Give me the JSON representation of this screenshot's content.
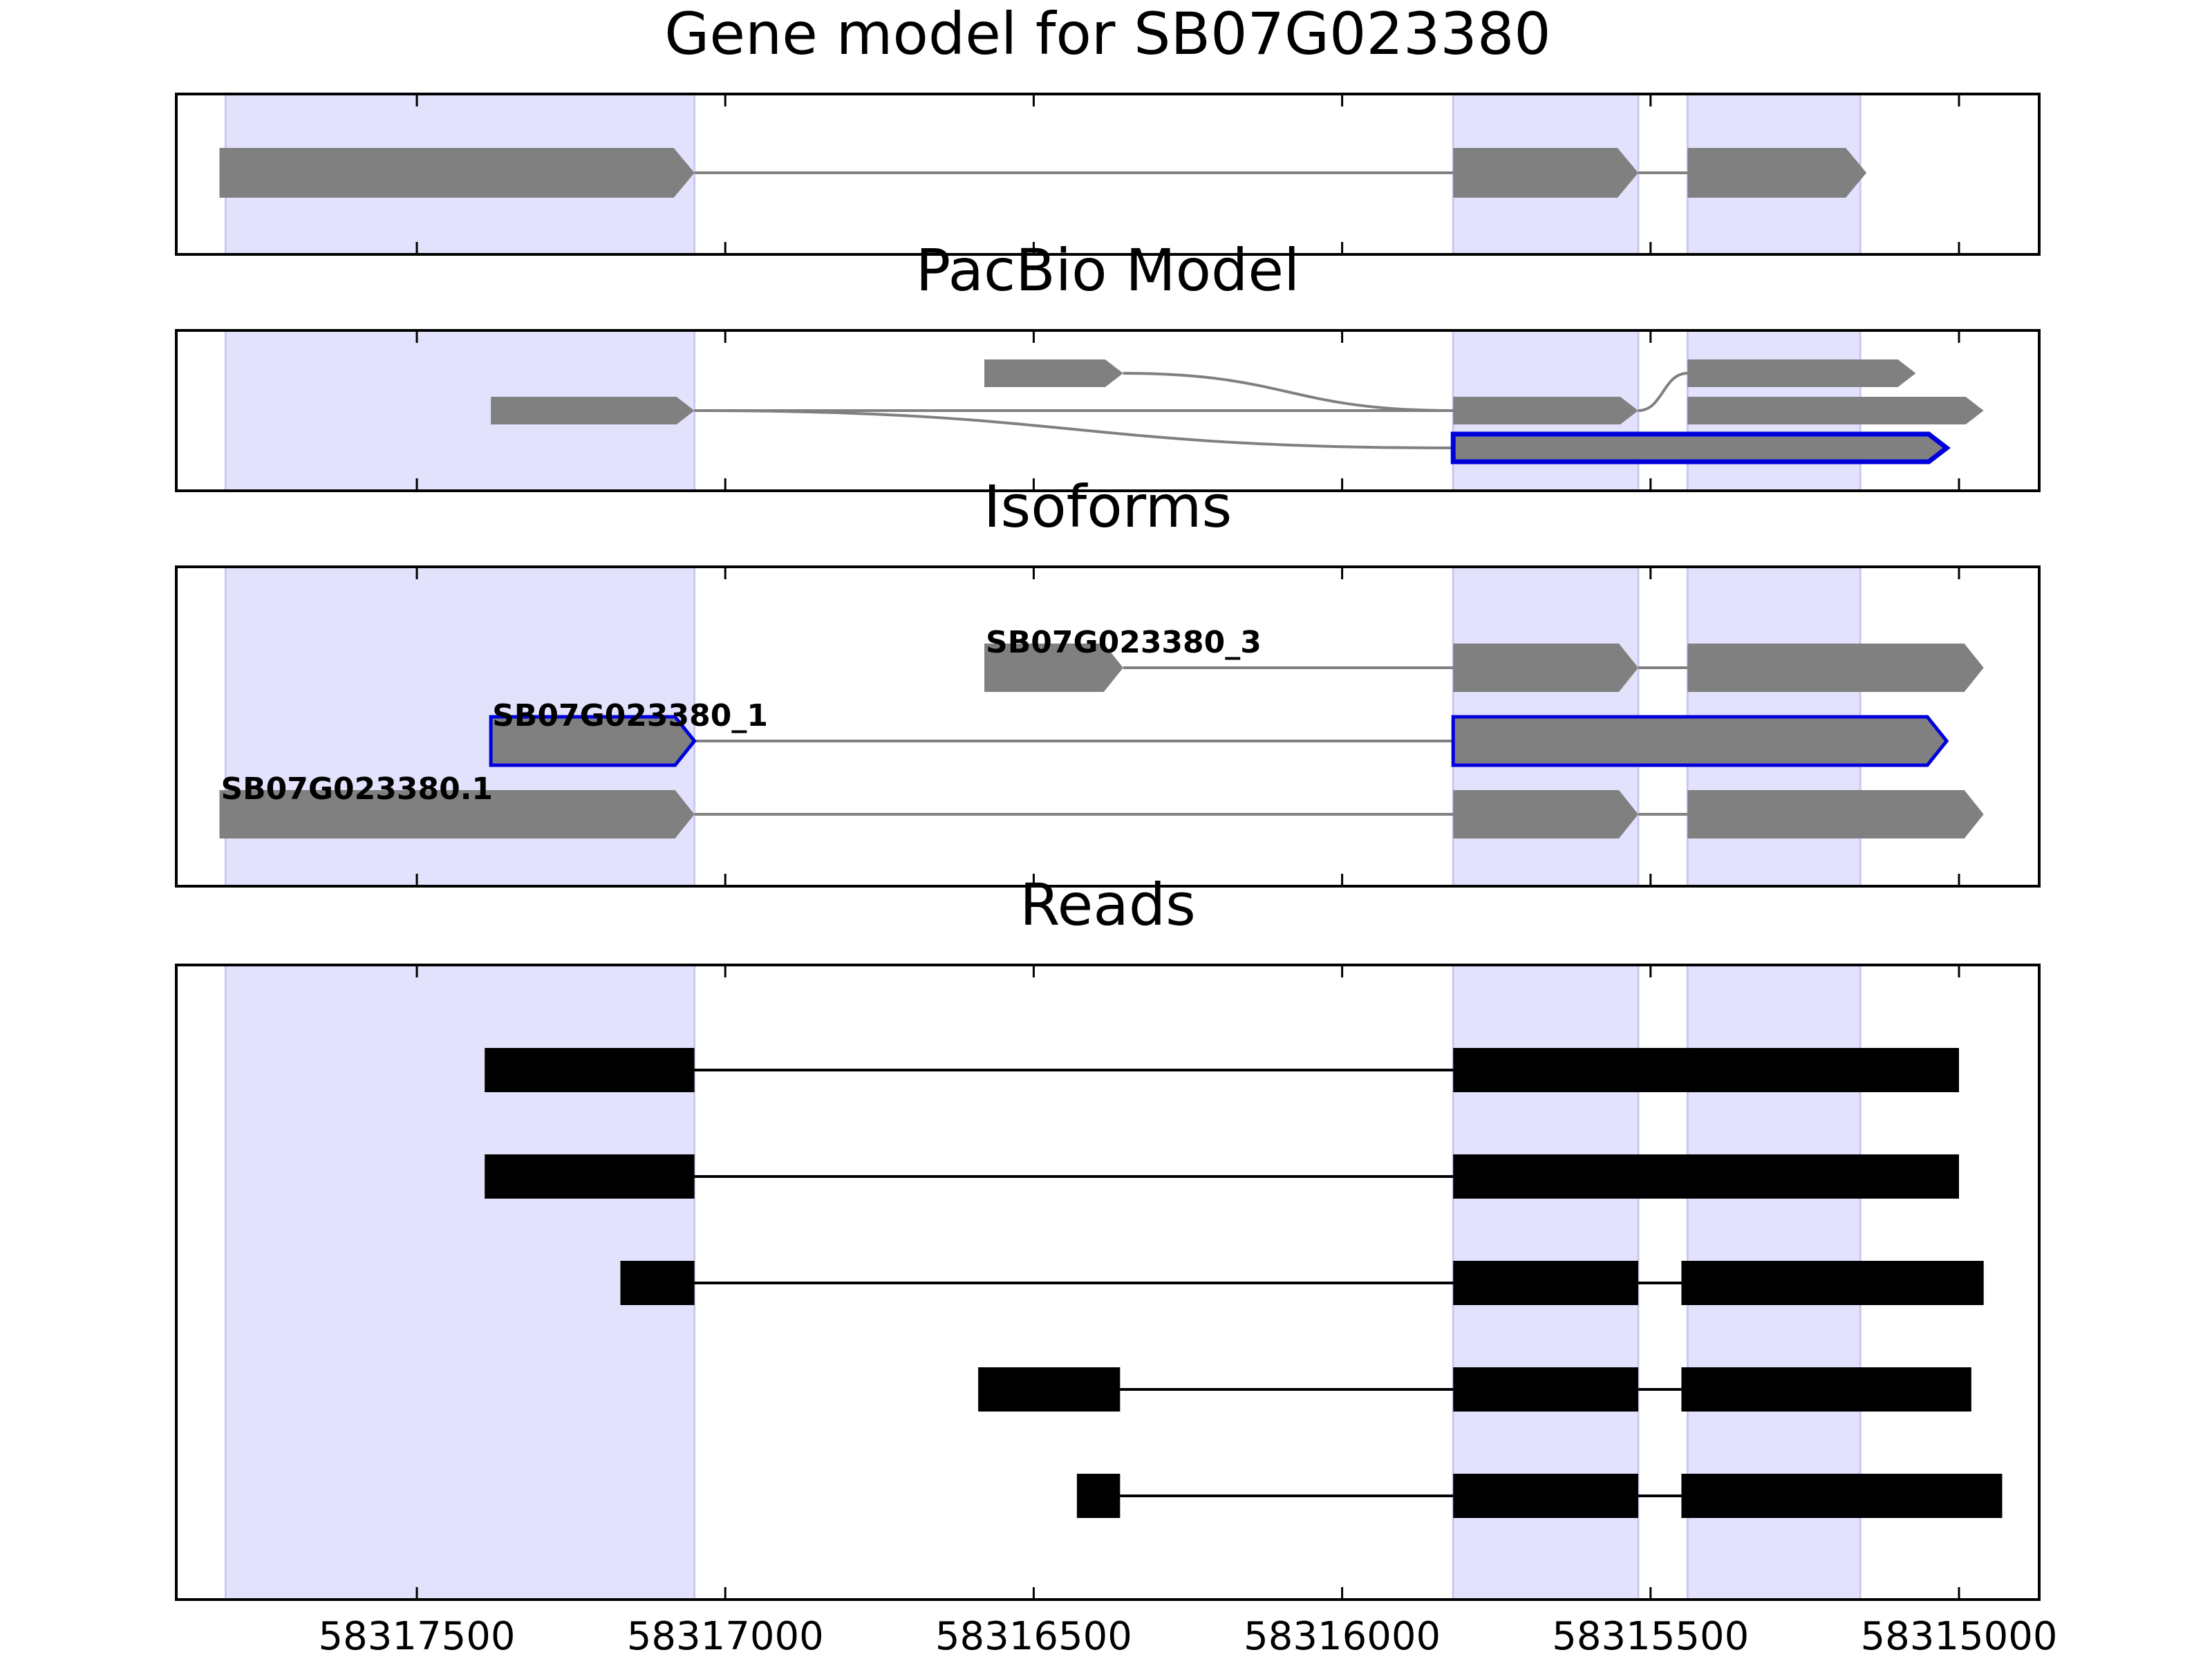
{
  "figure": {
    "panel_titles": [
      "Gene model for SB07G023380",
      "PacBio Model",
      "Isoforms",
      "Reads"
    ],
    "x_tick_labels": [
      "58317500",
      "58317000",
      "58316500",
      "58316000",
      "58315500",
      "58315000"
    ],
    "colors": {
      "exon_region": "#e2e2fc",
      "exon_region_edge": "#c9c9ef",
      "feature": "#808080",
      "highlight": "#0000dd",
      "read": "#000000"
    }
  },
  "chart_data": [
    {
      "type": "gene-model",
      "title": "Gene model for SB07G023380",
      "x_axis": {
        "range": [
          58317890,
          58314870
        ],
        "reversed": true,
        "ticks": [
          58317500,
          58317000,
          58316500,
          58316000,
          58315500,
          58315000
        ]
      },
      "exon_regions": [
        [
          58317810,
          58317050
        ],
        [
          58315820,
          58315520
        ],
        [
          58315440,
          58315160
        ]
      ],
      "transcripts": [
        {
          "exons": [
            [
              58317820,
              58317050
            ],
            [
              58315820,
              58315520
            ],
            [
              58315440,
              58315150
            ]
          ],
          "strand": "-"
        }
      ]
    },
    {
      "type": "gene-model",
      "title": "PacBio Model",
      "x_axis": {
        "range": [
          58317890,
          58314870
        ],
        "reversed": true
      },
      "exon_regions": [
        [
          58317810,
          58317050
        ],
        [
          58315820,
          58315520
        ],
        [
          58315440,
          58315160
        ]
      ],
      "transcripts": [
        {
          "exons": [
            [
              58316580,
              58316355
            ],
            [
              58315440,
              58315070
            ]
          ],
          "strand": "-"
        },
        {
          "exons": [
            [
              58317380,
              58317050
            ],
            [
              58315820,
              58315520
            ],
            [
              58315440,
              58314960
            ]
          ],
          "strand": "-"
        },
        {
          "exons": [
            [
              58315820,
              58315020
            ]
          ],
          "strand": "-",
          "highlighted": true
        }
      ],
      "connections": [
        {
          "from_transcript": 1,
          "from_exon": 0,
          "to_transcript": 2,
          "to_exon": 0
        },
        {
          "from_transcript": 0,
          "from_exon": 0,
          "to_transcript": 1,
          "to_exon": 1
        },
        {
          "from_transcript": 1,
          "from_exon": 1,
          "to_transcript": 0,
          "to_exon": 1
        }
      ]
    },
    {
      "type": "gene-model",
      "title": "Isoforms",
      "x_axis": {
        "range": [
          58317890,
          58314870
        ],
        "reversed": true
      },
      "exon_regions": [
        [
          58317810,
          58317050
        ],
        [
          58315820,
          58315520
        ],
        [
          58315440,
          58315160
        ]
      ],
      "isoforms": [
        {
          "name": "SB07G023380_3",
          "exons": [
            [
              58316580,
              58316355
            ],
            [
              58315820,
              58315520
            ],
            [
              58315440,
              58314960
            ]
          ],
          "strand": "-"
        },
        {
          "name": "SB07G023380_1",
          "exons": [
            [
              58317380,
              58317050
            ],
            [
              58315820,
              58315020
            ]
          ],
          "strand": "-",
          "highlighted": true
        },
        {
          "name": "SB07G023380.1",
          "exons": [
            [
              58317820,
              58317050
            ],
            [
              58315820,
              58315520
            ],
            [
              58315440,
              58314960
            ]
          ],
          "strand": "-"
        }
      ]
    },
    {
      "type": "read-alignment",
      "title": "Reads",
      "x_axis": {
        "range": [
          58317890,
          58314870
        ],
        "reversed": true,
        "ticks": [
          58317500,
          58317000,
          58316500,
          58316000,
          58315500,
          58315000
        ],
        "tick_labels": [
          "58317500",
          "58317000",
          "58316500",
          "58316000",
          "58315500",
          "58315000"
        ]
      },
      "exon_regions": [
        [
          58317810,
          58317050
        ],
        [
          58315820,
          58315520
        ],
        [
          58315440,
          58315160
        ]
      ],
      "reads": [
        {
          "blocks": [
            [
              58317390,
              58317050
            ],
            [
              58315820,
              58315000
            ]
          ]
        },
        {
          "blocks": [
            [
              58317390,
              58317050
            ],
            [
              58315820,
              58315000
            ]
          ]
        },
        {
          "blocks": [
            [
              58317170,
              58317050
            ],
            [
              58315820,
              58315520
            ],
            [
              58315450,
              58314960
            ]
          ]
        },
        {
          "blocks": [
            [
              58316590,
              58316360
            ],
            [
              58315820,
              58315520
            ],
            [
              58315450,
              58314980
            ]
          ]
        },
        {
          "blocks": [
            [
              58316430,
              58316360
            ],
            [
              58315820,
              58315520
            ],
            [
              58315450,
              58314930
            ]
          ]
        }
      ]
    }
  ]
}
